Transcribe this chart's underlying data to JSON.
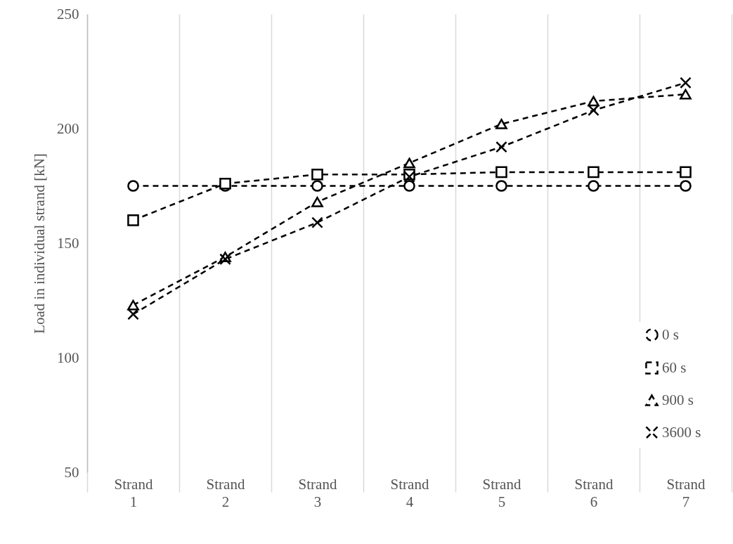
{
  "chart_data": {
    "type": "line",
    "ylabel": "Load in individual strand [kN]",
    "categories": [
      "Strand 1",
      "Strand 2",
      "Strand 3",
      "Strand 4",
      "Strand 5",
      "Strand 6",
      "Strand 7"
    ],
    "series": [
      {
        "name": "0 s",
        "color": "#000000",
        "marker": "circle",
        "values": [
          175,
          175,
          175,
          175,
          175,
          175,
          175
        ]
      },
      {
        "name": "60 s",
        "color": "#000000",
        "marker": "square",
        "values": [
          160,
          176,
          180,
          180,
          181,
          181,
          181
        ]
      },
      {
        "name": "900 s",
        "color": "#000000",
        "marker": "triangle",
        "values": [
          123,
          144,
          168,
          185,
          202,
          212,
          215
        ]
      },
      {
        "name": "3600 s",
        "color": "#000000",
        "marker": "cross",
        "values": [
          119,
          143,
          159,
          179,
          192,
          208,
          220
        ]
      }
    ],
    "ylim": [
      50,
      250
    ],
    "yticks": [
      50,
      100,
      150,
      200,
      250
    ],
    "grid": "x",
    "legend": "bottom right",
    "line_style": "dashed"
  }
}
